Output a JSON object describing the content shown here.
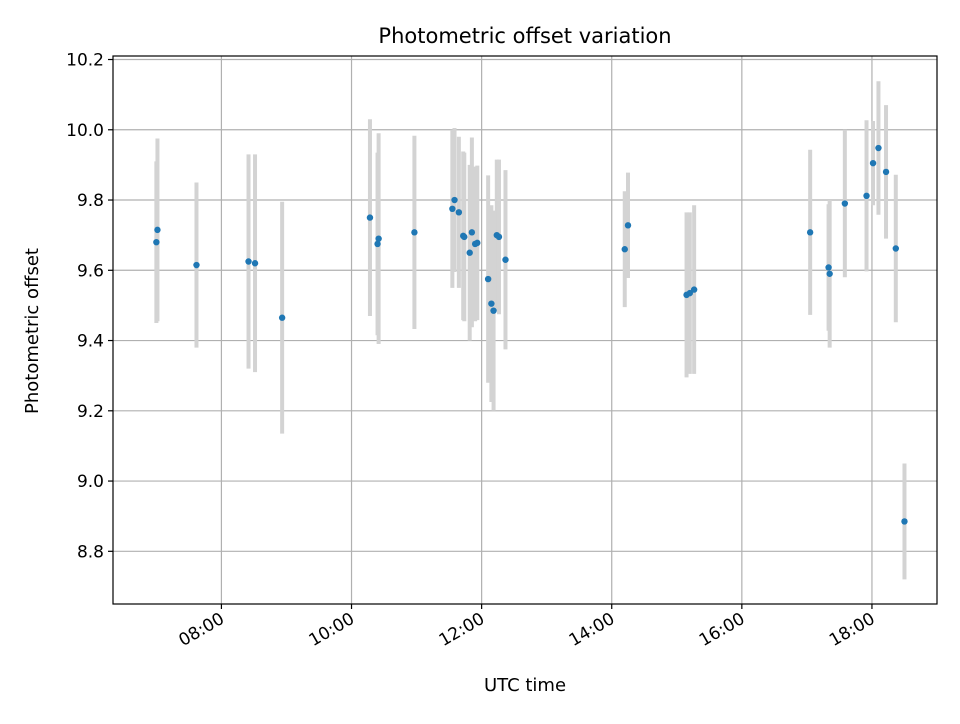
{
  "chart_data": {
    "type": "scatter",
    "title": "Photometric offset variation",
    "xlabel": "UTC time",
    "ylabel": "Photometric offset",
    "x_ticks": [
      "08:00",
      "10:00",
      "12:00",
      "14:00",
      "16:00",
      "18:00"
    ],
    "y_ticks": [
      "8.8",
      "9.0",
      "9.2",
      "9.4",
      "9.6",
      "9.8",
      "10.0",
      "10.2"
    ],
    "xlim": [
      "06:20",
      "19:00"
    ],
    "ylim": [
      8.65,
      10.21
    ],
    "grid": true,
    "legend": "none",
    "colors": {
      "point": "#1f77b4",
      "errorbar": "#d3d3d3",
      "grid": "#b0b0b0"
    },
    "points": [
      {
        "x": "07:00",
        "y": 9.68,
        "yerr": 0.23
      },
      {
        "x": "07:01",
        "y": 9.715,
        "yerr": 0.26
      },
      {
        "x": "07:37",
        "y": 9.615,
        "yerr": 0.235
      },
      {
        "x": "08:25",
        "y": 9.625,
        "yerr": 0.305
      },
      {
        "x": "08:31",
        "y": 9.62,
        "yerr": 0.31
      },
      {
        "x": "08:56",
        "y": 9.465,
        "yerr": 0.33
      },
      {
        "x": "10:17",
        "y": 9.75,
        "yerr": 0.28
      },
      {
        "x": "10:24",
        "y": 9.675,
        "yerr": 0.26
      },
      {
        "x": "10:25",
        "y": 9.69,
        "yerr": 0.3
      },
      {
        "x": "10:58",
        "y": 9.708,
        "yerr": 0.275
      },
      {
        "x": "11:33",
        "y": 9.775,
        "yerr": 0.225
      },
      {
        "x": "11:35",
        "y": 9.8,
        "yerr": 0.205
      },
      {
        "x": "11:39",
        "y": 9.765,
        "yerr": 0.215
      },
      {
        "x": "11:43",
        "y": 9.698,
        "yerr": 0.24
      },
      {
        "x": "11:44",
        "y": 9.695,
        "yerr": 0.24
      },
      {
        "x": "11:49",
        "y": 9.65,
        "yerr": 0.25
      },
      {
        "x": "11:51",
        "y": 9.708,
        "yerr": 0.27
      },
      {
        "x": "11:54",
        "y": 9.675,
        "yerr": 0.22
      },
      {
        "x": "11:56",
        "y": 9.678,
        "yerr": 0.22
      },
      {
        "x": "12:06",
        "y": 9.575,
        "yerr": 0.295
      },
      {
        "x": "12:09",
        "y": 9.505,
        "yerr": 0.28
      },
      {
        "x": "12:11",
        "y": 9.485,
        "yerr": 0.285
      },
      {
        "x": "12:14",
        "y": 9.7,
        "yerr": 0.215
      },
      {
        "x": "12:16",
        "y": 9.695,
        "yerr": 0.22
      },
      {
        "x": "12:22",
        "y": 9.63,
        "yerr": 0.255
      },
      {
        "x": "14:12",
        "y": 9.66,
        "yerr": 0.165
      },
      {
        "x": "14:15",
        "y": 9.728,
        "yerr": 0.15
      },
      {
        "x": "15:09",
        "y": 9.53,
        "yerr": 0.235
      },
      {
        "x": "15:12",
        "y": 9.535,
        "yerr": 0.23
      },
      {
        "x": "15:16",
        "y": 9.545,
        "yerr": 0.24
      },
      {
        "x": "17:03",
        "y": 9.708,
        "yerr": 0.235
      },
      {
        "x": "17:20",
        "y": 9.608,
        "yerr": 0.18
      },
      {
        "x": "17:21",
        "y": 9.59,
        "yerr": 0.21
      },
      {
        "x": "17:35",
        "y": 9.79,
        "yerr": 0.21
      },
      {
        "x": "17:55",
        "y": 9.812,
        "yerr": 0.215
      },
      {
        "x": "18:01",
        "y": 9.905,
        "yerr": 0.12
      },
      {
        "x": "18:06",
        "y": 9.948,
        "yerr": 0.19
      },
      {
        "x": "18:13",
        "y": 9.88,
        "yerr": 0.19
      },
      {
        "x": "18:22",
        "y": 9.662,
        "yerr": 0.21
      },
      {
        "x": "18:30",
        "y": 8.885,
        "yerr": 0.165
      }
    ]
  }
}
